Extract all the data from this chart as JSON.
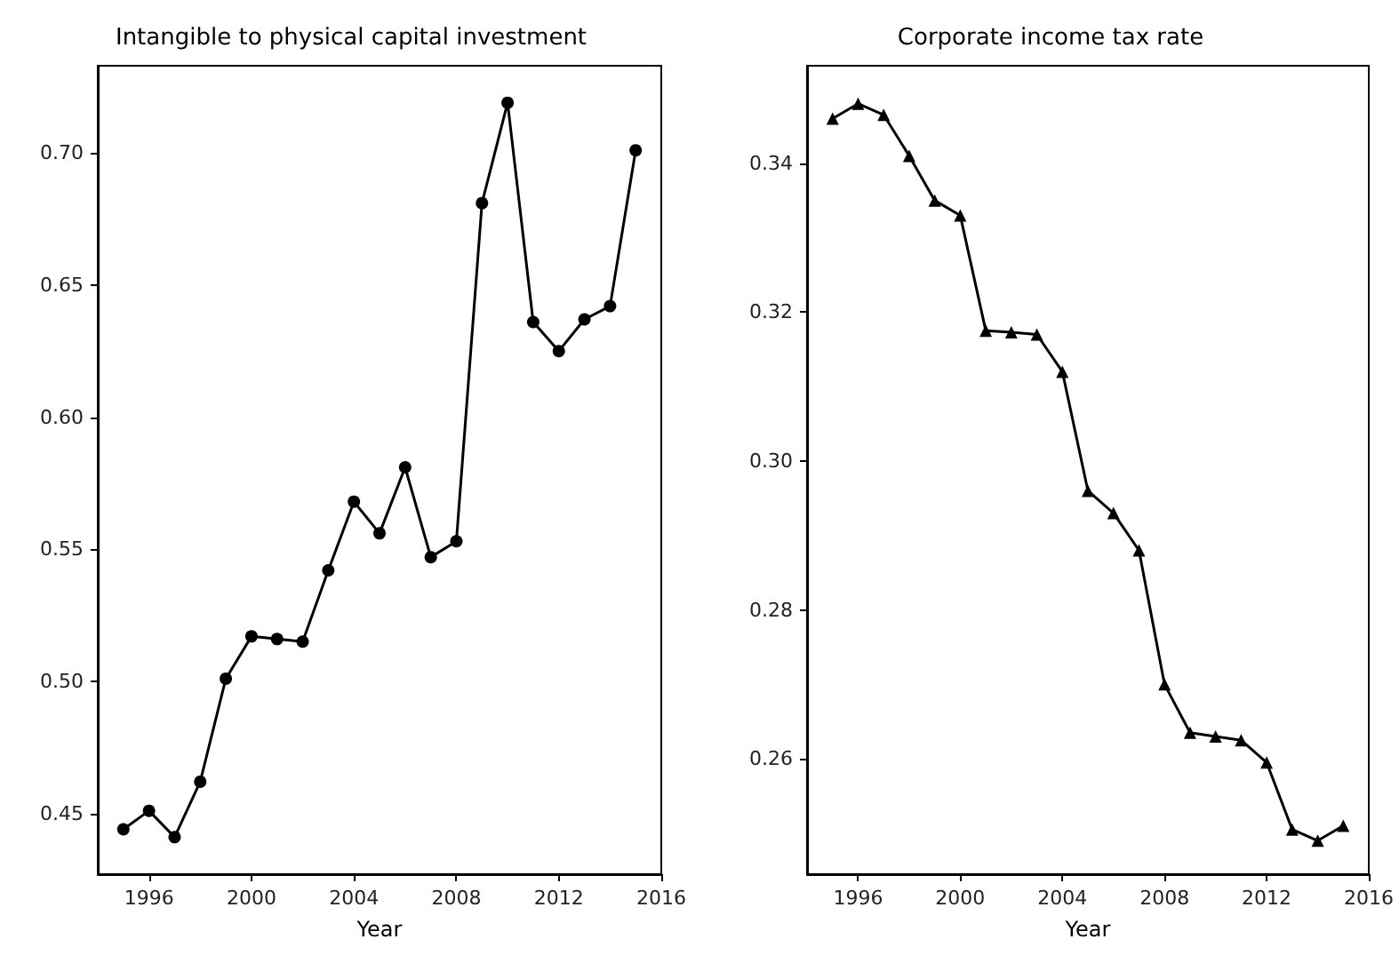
{
  "chart_data": [
    {
      "type": "line",
      "title": "Intangible to physical capital investment",
      "xlabel": "Year",
      "marker": "circle",
      "line_style": "solid",
      "grid": false,
      "x": [
        1995,
        1996,
        1997,
        1998,
        1999,
        2000,
        2001,
        2002,
        2003,
        2004,
        2005,
        2006,
        2007,
        2008,
        2009,
        2010,
        2011,
        2012,
        2013,
        2014,
        2015
      ],
      "series": [
        {
          "color": "#000000",
          "values": [
            0.444,
            0.451,
            0.441,
            0.462,
            0.501,
            0.517,
            0.516,
            0.515,
            0.542,
            0.568,
            0.556,
            0.581,
            0.547,
            0.553,
            0.681,
            0.719,
            0.636,
            0.625,
            0.637,
            0.642,
            0.701
          ]
        }
      ],
      "xlim": [
        1994,
        2016
      ],
      "xticks": [
        1996,
        2000,
        2004,
        2008,
        2012,
        2016
      ],
      "ylim": [
        0.427,
        0.733
      ],
      "yticks": [
        {
          "value": 0.45,
          "label": "0.45"
        },
        {
          "value": 0.5,
          "label": "0.50"
        },
        {
          "value": 0.55,
          "label": "0.55"
        },
        {
          "value": 0.6,
          "label": "0.60"
        },
        {
          "value": 0.65,
          "label": "0.65"
        },
        {
          "value": 0.7,
          "label": "0.70"
        }
      ]
    },
    {
      "type": "line",
      "title": "Corporate income tax rate",
      "xlabel": "Year",
      "marker": "triangle",
      "line_style": "solid",
      "grid": false,
      "x": [
        1995,
        1996,
        1997,
        1998,
        1999,
        2000,
        2001,
        2002,
        2003,
        2004,
        2005,
        2006,
        2007,
        2008,
        2009,
        2010,
        2011,
        2012,
        2013,
        2014,
        2015
      ],
      "series": [
        {
          "color": "#000000",
          "values": [
            0.346,
            0.348,
            0.3465,
            0.341,
            0.335,
            0.333,
            0.3175,
            0.3173,
            0.317,
            0.312,
            0.296,
            0.293,
            0.288,
            0.27,
            0.2635,
            0.263,
            0.2625,
            0.2595,
            0.2505,
            0.249,
            0.251
          ]
        }
      ],
      "xlim": [
        1994,
        2016
      ],
      "xticks": [
        1996,
        2000,
        2004,
        2008,
        2012,
        2016
      ],
      "ylim": [
        0.2445,
        0.3531
      ],
      "yticks": [
        {
          "value": 0.26,
          "label": "0.26"
        },
        {
          "value": 0.28,
          "label": "0.28"
        },
        {
          "value": 0.3,
          "label": "0.30"
        },
        {
          "value": 0.32,
          "label": "0.32"
        },
        {
          "value": 0.34,
          "label": "0.34"
        }
      ]
    }
  ]
}
